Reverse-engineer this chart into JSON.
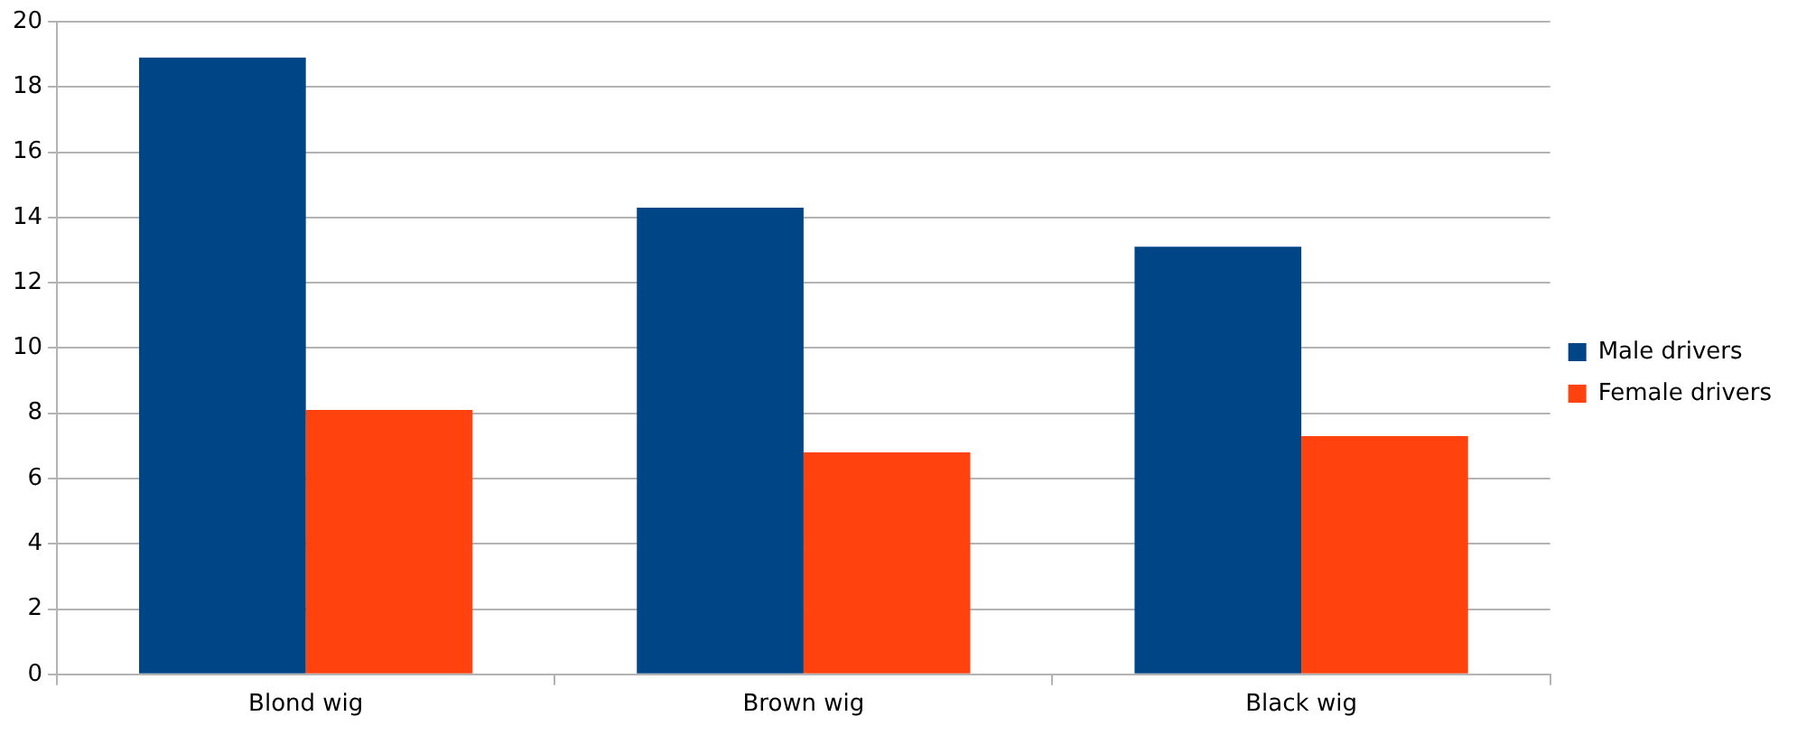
{
  "chart_data": {
    "type": "bar",
    "categories": [
      "Blond wig",
      "Brown wig",
      "Black wig"
    ],
    "series": [
      {
        "name": "Male drivers",
        "color": "#004586",
        "values": [
          18.9,
          14.3,
          13.1
        ]
      },
      {
        "name": "Female drivers",
        "color": "#ff420e",
        "values": [
          8.1,
          6.8,
          7.3
        ]
      }
    ],
    "ylim": [
      0,
      20
    ],
    "yticks": [
      0,
      2,
      4,
      6,
      8,
      10,
      12,
      14,
      16,
      18,
      20
    ],
    "grid": "y",
    "legend": "right"
  }
}
